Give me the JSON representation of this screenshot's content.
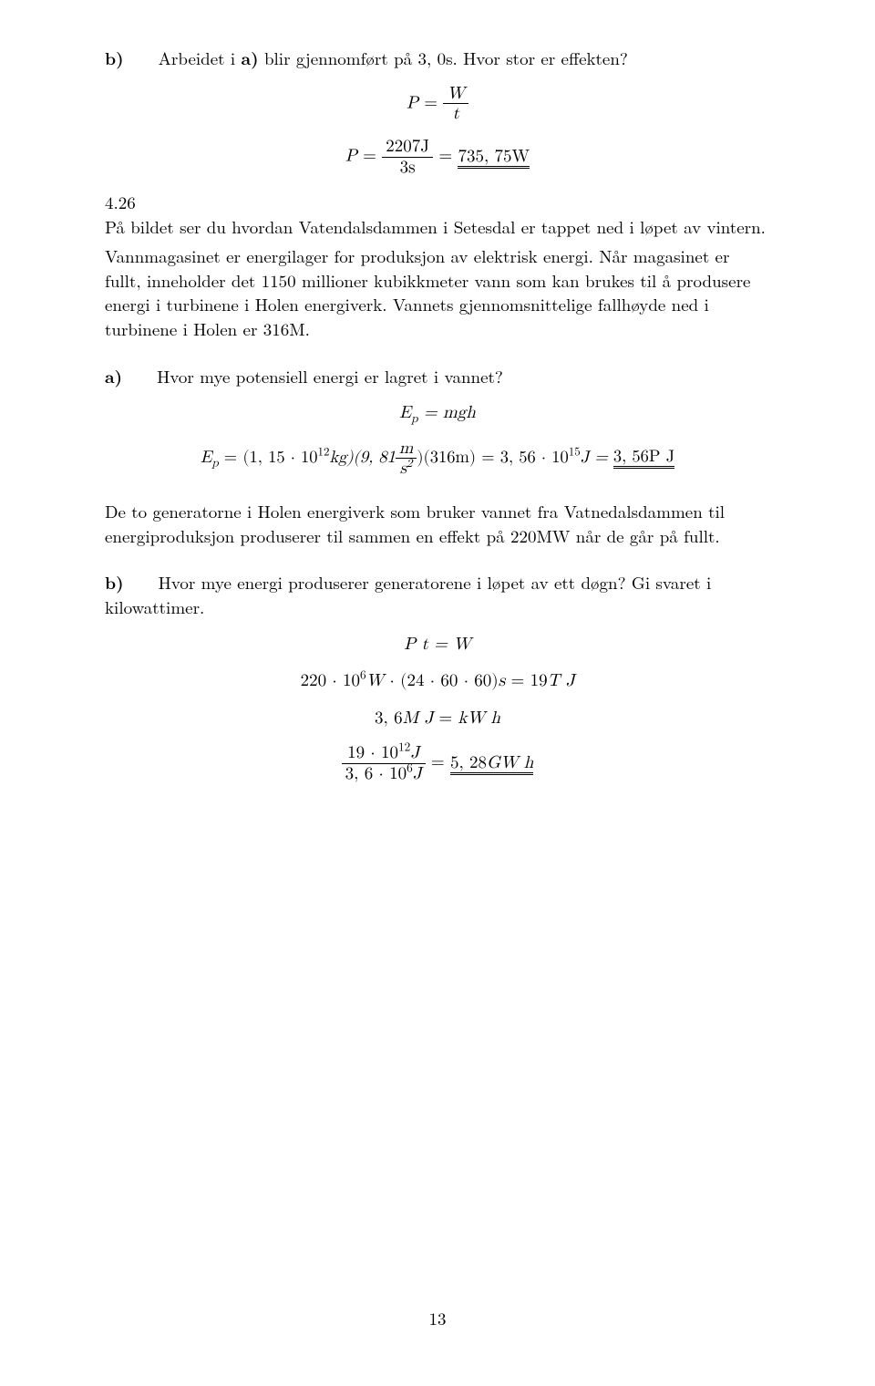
{
  "b_label": "b)",
  "a_label_in_b": "a)",
  "b_text_before_a": "Arbeidet i ",
  "b_text_after_a": " blir gjennomført på 3, 0s. Hvor stor er effekten?",
  "eq1_lhs": "P",
  "eq1_eq": " = ",
  "eq1_num": "W",
  "eq1_den": "t",
  "eq2_lhs": "P",
  "eq2_num": "2207J",
  "eq2_den": "3s",
  "eq2_rhs": "735, 75W",
  "sec426": "4.26",
  "p426_1": "På bildet ser du hvordan Vatendalsdammen i Setesdal er tappet ned i løpet av vintern.",
  "p426_2": "Vannmagasinet er energilager for produksjon av elektrisk energi. Når magasinet er fullt, inneholder det 1150 millioner kubikkmeter vann som kan brukes til å produsere energi i turbinene i Holen energiverk. Vannets gjennomsnittelige fallhøyde ned i turbinene i Holen er 316M.",
  "a_label": "a)",
  "a_text": "Hvor mye potensiell energi er lagret i vannet?",
  "eq3": "E",
  "eq3_sub": "p",
  "eq3_rhs": " = mgh",
  "eq4_lhs1": "E",
  "eq4_pre": " = (1, 15 · 10",
  "eq4_exp12": "12",
  "eq4_kg": "kg)(9, 81",
  "eq4_frac_num": "m",
  "eq4_frac_den_s": "s",
  "eq4_frac_den_exp": "2",
  "eq4_after": ")(316m) = 3, 56 · 10",
  "eq4_exp15": "15",
  "eq4_J": "J = ",
  "eq4_final": "3, 56P J",
  "p_after_a": "De to generatorne i Holen energiverk som bruker vannet fra Vatnedalsdammen til energiproduksjon produserer til sammen en effekt på 220MW når de går på fullt.",
  "b2_label": "b)",
  "b2_text": "Hvor mye energi produserer generatorene i løpet av ett døgn? Gi svaret i kilowattimer.",
  "eq5": "P t = W",
  "eq6_pre": "220 · 10",
  "eq6_exp6": "6",
  "eq6_mid": "W · (24 · 60 · 60)s = 19T J",
  "eq7": "3, 6M J = kW h",
  "eq8_num_pre": "19 · 10",
  "eq8_num_exp": "12",
  "eq8_num_J": "J",
  "eq8_den_pre": "3, 6 · 10",
  "eq8_den_exp": "6",
  "eq8_den_J": "J",
  "eq8_rhs": "5, 28GW h",
  "page_number": "13"
}
